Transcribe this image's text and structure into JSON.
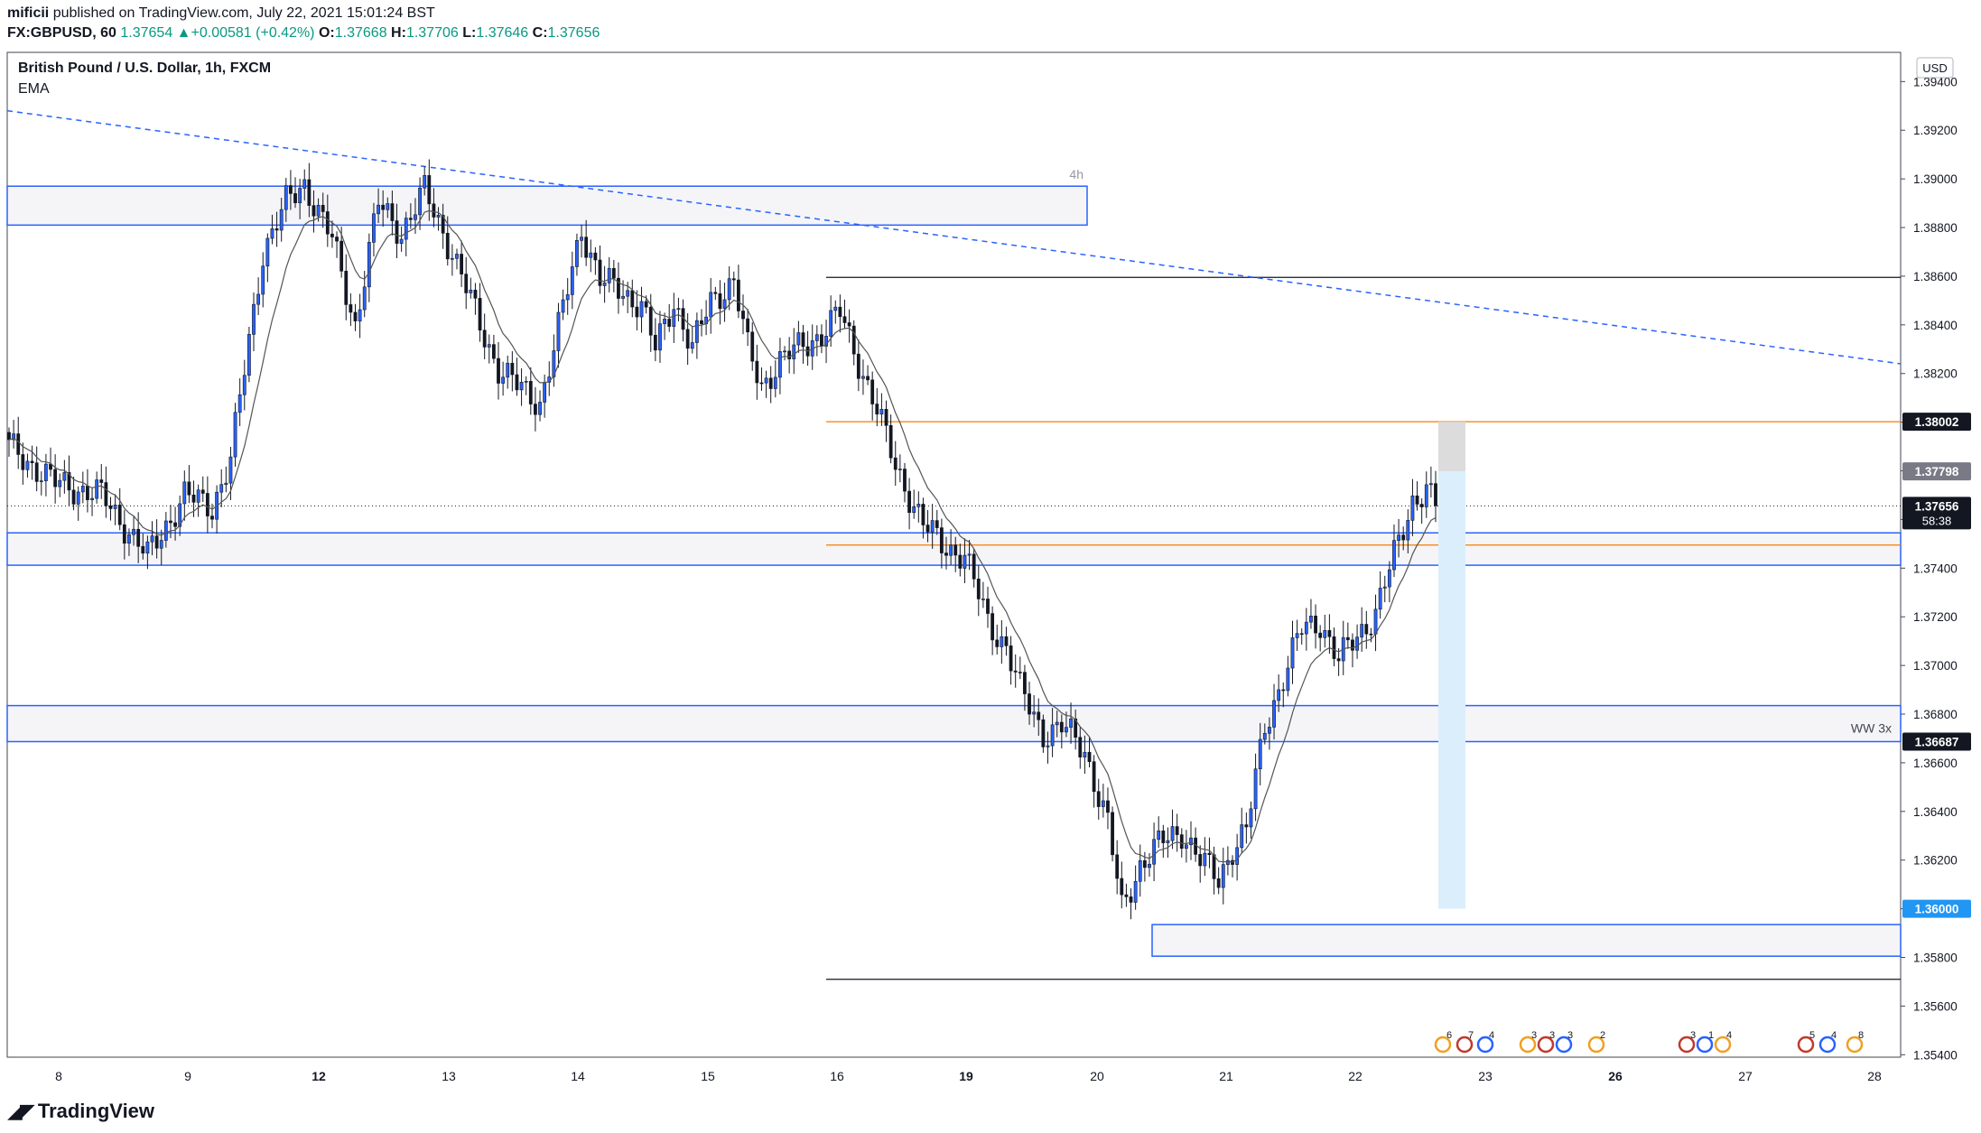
{
  "header": {
    "author": "mificii",
    "published_text": "published on TradingView.com, July 22, 2021 15:01:24 BST",
    "symbol": "FX:GBPUSD, 60",
    "last": "1.37654",
    "change": "+0.00581 (+0.42%)",
    "open_label": "O:",
    "open": "1.37668",
    "high_label": "H:",
    "high": "1.37706",
    "low_label": "L:",
    "low": "1.37646",
    "close_label": "C:",
    "close": "1.37656"
  },
  "legend": {
    "title": "British Pound / U.S. Dollar, 1h, FXCM",
    "indicator": "EMA"
  },
  "footer": {
    "brand": "TradingView"
  },
  "colors": {
    "up_candle": "#2962ff",
    "down_candle": "#131722",
    "zone_border": "#2962ff",
    "zone_fill": "#f5f5f8",
    "orange_line": "#f57c00",
    "position_fill": "#dbeefc",
    "stop_fill": "#d8d8d8"
  },
  "chart_data": {
    "type": "candlestick",
    "title": "British Pound / U.S. Dollar, 1h, FXCM",
    "currency_label": "USD",
    "y_ticks": [
      "1.35400",
      "1.35600",
      "1.35800",
      "1.36000",
      "1.36200",
      "1.36400",
      "1.36600",
      "1.36800",
      "1.37000",
      "1.37200",
      "1.37400",
      "1.37600",
      "1.37800",
      "1.38000",
      "1.38200",
      "1.38400",
      "1.38600",
      "1.38800",
      "1.39000",
      "1.39200",
      "1.39400"
    ],
    "y_range": [
      1.3539,
      1.3952
    ],
    "x_ticks": [
      {
        "label": "8",
        "bold": false
      },
      {
        "label": "9",
        "bold": false
      },
      {
        "label": "12",
        "bold": true
      },
      {
        "label": "13",
        "bold": false
      },
      {
        "label": "14",
        "bold": false
      },
      {
        "label": "15",
        "bold": false
      },
      {
        "label": "16",
        "bold": false
      },
      {
        "label": "19",
        "bold": true
      },
      {
        "label": "20",
        "bold": false
      },
      {
        "label": "21",
        "bold": false
      },
      {
        "label": "22",
        "bold": false
      },
      {
        "label": "23",
        "bold": false
      },
      {
        "label": "26",
        "bold": true
      },
      {
        "label": "27",
        "bold": false
      },
      {
        "label": "28",
        "bold": false
      }
    ],
    "price_labels": [
      {
        "text": "1.38002",
        "price": 1.38002,
        "style": "dark"
      },
      {
        "text": "1.37798",
        "price": 1.37798,
        "style": "gray"
      },
      {
        "text": "1.37656",
        "price": 1.37656,
        "style": "dark",
        "subtext": "58:38"
      },
      {
        "text": "1.36687",
        "price": 1.36687,
        "style": "dark"
      },
      {
        "text": "1.36000",
        "price": 1.36,
        "style": "blue"
      }
    ],
    "zones": [
      {
        "label": "4h",
        "top": 1.3897,
        "bottom": 1.3881
      },
      {
        "label": "",
        "top": 1.37545,
        "bottom": 1.37412
      },
      {
        "label": "WW 3x",
        "top": 1.36835,
        "bottom": 1.36687
      },
      {
        "label": "",
        "top": 1.35935,
        "bottom": 1.35805
      }
    ],
    "horizontal_lines": [
      1.38595,
      1.3571
    ],
    "orange_lines": [
      1.38002,
      1.37495
    ],
    "trendline": {
      "start_price": 1.3928,
      "end_price": 1.3824
    },
    "current_price": 1.37656,
    "position": {
      "entry": 1.37798,
      "stop": 1.38002,
      "target": 1.36
    },
    "event_markers": [
      "6",
      "7",
      "4",
      "3",
      "3",
      "3",
      "2",
      "3",
      "1",
      "4",
      "5",
      "4",
      "8"
    ]
  }
}
